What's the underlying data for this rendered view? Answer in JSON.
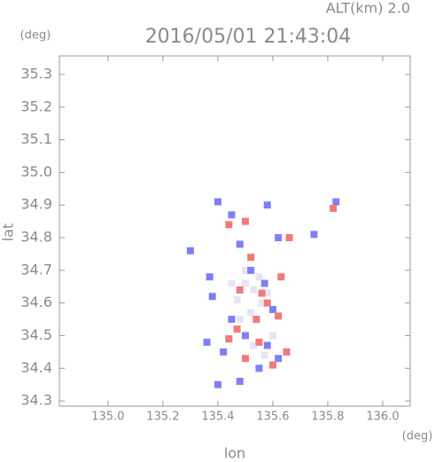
{
  "chart_data": {
    "type": "scatter",
    "title": "2016/05/01 21:43:04",
    "subtitle": "ALT(km) 2.0",
    "x_label": "lon",
    "y_label": "lat",
    "x_unit": "(deg)",
    "y_unit": "(deg)",
    "xlim": [
      134.823,
      136.1
    ],
    "ylim": [
      34.284,
      35.357
    ],
    "xticks": [
      {
        "value": 135.0,
        "label": "135.0"
      },
      135.2,
      135.4,
      135.6,
      135.8,
      {
        "value": 136.0,
        "label": "136.0"
      }
    ],
    "yticks": [
      34.3,
      34.4,
      34.5,
      34.6,
      34.7,
      34.8,
      34.9,
      {
        "value": 35.0,
        "label": "35.0"
      },
      35.1,
      35.2,
      35.3
    ],
    "series": [
      {
        "color": "#e6e4f2",
        "x": [
          135.5,
          135.53,
          135.56,
          135.47,
          135.52,
          135.58,
          135.5,
          135.55,
          135.45,
          135.6,
          135.53,
          135.57,
          135.48
        ],
        "values": [
          34.66,
          34.64,
          34.6,
          34.61,
          34.57,
          34.63,
          34.7,
          34.68,
          34.66,
          34.5,
          34.47,
          34.44,
          34.55
        ]
      },
      {
        "color": "#7f7ff5",
        "x": [
          135.4,
          135.45,
          135.58,
          135.62,
          135.83,
          135.75,
          135.48,
          135.38,
          135.37,
          135.52,
          135.57,
          135.45,
          135.5,
          135.58,
          135.62,
          135.55,
          135.4,
          135.48,
          135.3,
          135.36,
          135.6,
          135.42
        ],
        "values": [
          34.91,
          34.87,
          34.9,
          34.8,
          34.91,
          34.81,
          34.78,
          34.62,
          34.68,
          34.7,
          34.66,
          34.55,
          34.5,
          34.47,
          34.43,
          34.4,
          34.35,
          34.36,
          34.76,
          34.48,
          34.58,
          34.45
        ]
      },
      {
        "color": "#f07a7a",
        "x": [
          135.44,
          135.5,
          135.82,
          135.66,
          135.52,
          135.58,
          135.54,
          135.62,
          135.47,
          135.55,
          135.6,
          135.65,
          135.5,
          135.44,
          135.56,
          135.63,
          135.48
        ],
        "values": [
          34.84,
          34.85,
          34.89,
          34.8,
          34.74,
          34.6,
          34.55,
          34.56,
          34.52,
          34.48,
          34.41,
          34.45,
          34.43,
          34.49,
          34.63,
          34.68,
          34.64
        ]
      }
    ]
  }
}
